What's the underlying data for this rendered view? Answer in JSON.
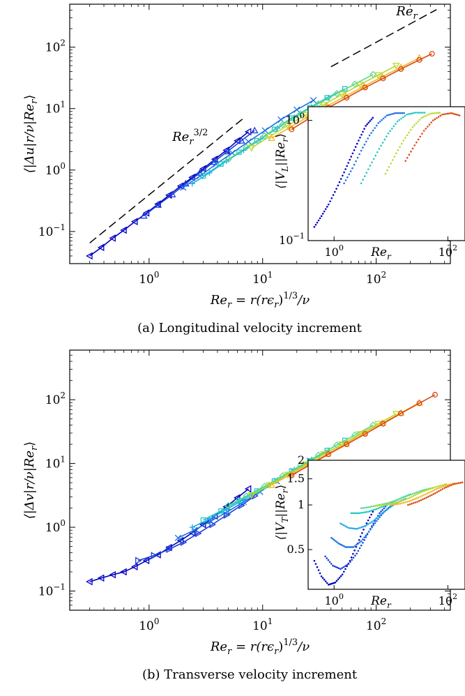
{
  "chart_data": [
    {
      "id": "a",
      "type": "scatter",
      "caption": "(a) Longitudinal velocity increment",
      "xscale": "log",
      "yscale": "log",
      "xlim": [
        0.2,
        450
      ],
      "ylim": [
        0.03,
        500
      ],
      "xticks": [
        {
          "v": 1,
          "mant": "10",
          "exp": "0"
        },
        {
          "v": 10,
          "mant": "10",
          "exp": "1"
        },
        {
          "v": 100,
          "mant": "10",
          "exp": "2"
        }
      ],
      "yticks": [
        {
          "v": 0.1,
          "mant": "10",
          "exp": "−1"
        },
        {
          "v": 1,
          "mant": "10",
          "exp": "0"
        },
        {
          "v": 10,
          "mant": "10",
          "exp": "1"
        },
        {
          "v": 100,
          "mant": "10",
          "exp": "2"
        }
      ],
      "xlabel": {
        "a": "Re",
        "b": "r",
        "c": " = r(rϵ",
        "d": "r",
        "e": ")",
        "f": "1/3",
        "g": "/ν"
      },
      "ylabel": {
        "a": "⟨|Δu|r/ν|Re",
        "b": "r",
        "c": "⟩"
      },
      "annotations": [
        {
          "name": "re-three-halves",
          "base": "Re",
          "sub": "r",
          "sup": "3/2",
          "x": 1.6,
          "y": 3.0
        },
        {
          "name": "re-linear",
          "base": "Re",
          "sub": "r",
          "sup": "",
          "x": 150,
          "y": 330
        }
      ],
      "reference_lines": [
        {
          "name": "slope-3/2",
          "x": [
            0.3,
            7
          ],
          "y": [
            0.065,
            7.3
          ]
        },
        {
          "name": "slope-1",
          "x": [
            40,
            340
          ],
          "y": [
            48,
            408
          ]
        }
      ],
      "series": [
        {
          "color": "#0000c0",
          "marker": "tri-left",
          "x": [
            0.3,
            0.38,
            0.48,
            0.6,
            0.75,
            0.95,
            1.2,
            1.5,
            1.9,
            2.4,
            3.0,
            3.8,
            4.8,
            6.0,
            7.5
          ],
          "y": [
            0.04,
            0.055,
            0.078,
            0.105,
            0.145,
            0.2,
            0.28,
            0.39,
            0.55,
            0.76,
            1.05,
            1.5,
            2.1,
            3.0,
            4.2
          ]
        },
        {
          "color": "#1a3cd8",
          "marker": "tri-up",
          "x": [
            0.9,
            1.2,
            1.6,
            2.1,
            2.8,
            3.7,
            4.9,
            6.5,
            8.5
          ],
          "y": [
            0.18,
            0.27,
            0.4,
            0.6,
            0.9,
            1.35,
            2.0,
            3.0,
            4.4
          ]
        },
        {
          "color": "#1b70e0",
          "marker": "cross",
          "x": [
            2.0,
            2.8,
            3.9,
            5.4,
            7.5,
            10.5,
            14.5,
            20,
            28
          ],
          "y": [
            0.52,
            0.8,
            1.25,
            1.9,
            2.9,
            4.4,
            6.6,
            9.6,
            13.6
          ]
        },
        {
          "color": "#20a8e8",
          "marker": "plus",
          "x": [
            2.4,
            3.4,
            4.8,
            6.8,
            9.6,
            13.5,
            19,
            27,
            38
          ],
          "y": [
            0.6,
            0.9,
            1.4,
            2.1,
            3.2,
            4.8,
            7.2,
            10.5,
            15
          ]
        },
        {
          "color": "#20c8c0",
          "marker": "square",
          "x": [
            3.0,
            4.3,
            6.2,
            8.9,
            12.7,
            18,
            26,
            37,
            53
          ],
          "y": [
            0.8,
            1.25,
            1.95,
            3.0,
            4.6,
            7.0,
            10.4,
            15,
            21
          ]
        },
        {
          "color": "#5ed890",
          "marker": "diamond",
          "x": [
            5.0,
            7.2,
            10.4,
            15,
            21.6,
            31,
            45,
            65,
            94
          ],
          "y": [
            1.5,
            2.35,
            3.6,
            5.5,
            8.2,
            12,
            17.5,
            25,
            36
          ]
        },
        {
          "color": "#b8d830",
          "marker": "tri-down",
          "x": [
            8,
            11.5,
            16.6,
            24,
            34.5,
            50,
            72,
            104,
            150
          ],
          "y": [
            2.3,
            3.5,
            5.3,
            7.9,
            11.5,
            17,
            24.5,
            35,
            50
          ]
        },
        {
          "color": "#f0b828",
          "marker": "tri-up",
          "x": [
            12,
            17.5,
            25.5,
            37,
            54,
            78,
            113,
            165,
            240
          ],
          "y": [
            3.3,
            5.0,
            7.5,
            11,
            16,
            23,
            33,
            47,
            67
          ]
        },
        {
          "color": "#d94a14",
          "marker": "circle",
          "x": [
            18,
            26,
            38,
            55,
            80,
            115,
            165,
            240,
            310
          ],
          "y": [
            4.6,
            7.0,
            10.4,
            15,
            22,
            31,
            44,
            62,
            78
          ]
        }
      ],
      "inset": {
        "xscale": "log",
        "yscale": "log",
        "xlim": [
          0.35,
          200
        ],
        "ylim": [
          0.1,
          1.3
        ],
        "xticks": [
          {
            "v": 1,
            "mant": "10",
            "exp": "0"
          },
          {
            "v": 100,
            "mant": "10",
            "exp": "2"
          }
        ],
        "yticks": [
          {
            "v": 0.1,
            "mant": "10",
            "exp": "−1"
          },
          {
            "v": 1,
            "mant": "10",
            "exp": "0"
          }
        ],
        "xlabel": {
          "a": "Re",
          "b": "r"
        },
        "ylabel": {
          "a": "⟨|V",
          "b": "L",
          "c": "||Re",
          "d": "r",
          "e": "⟩"
        },
        "series": [
          {
            "color": "#0000c0",
            "x": [
              0.45,
              0.6,
              0.8,
              1.1,
              1.5,
              2.0,
              2.7,
              3.6,
              4.8
            ],
            "y": [
              0.13,
              0.16,
              0.2,
              0.27,
              0.37,
              0.5,
              0.68,
              0.9,
              1.05
            ]
          },
          {
            "color": "#1b70e0",
            "x": [
              1.5,
              2.1,
              3.0,
              4.2,
              6.0,
              8.5,
              12,
              17
            ],
            "y": [
              0.3,
              0.4,
              0.56,
              0.75,
              0.95,
              1.1,
              1.15,
              1.15
            ]
          },
          {
            "color": "#20c8c0",
            "x": [
              3,
              4.3,
              6.2,
              9,
              13,
              19,
              27,
              39
            ],
            "y": [
              0.3,
              0.42,
              0.58,
              0.78,
              0.98,
              1.12,
              1.16,
              1.16
            ]
          },
          {
            "color": "#b8d830",
            "x": [
              8,
              11.5,
              16.6,
              24,
              34.5,
              50,
              72
            ],
            "y": [
              0.36,
              0.5,
              0.68,
              0.88,
              1.05,
              1.14,
              1.16
            ]
          },
          {
            "color": "#d94a14",
            "x": [
              18,
              26,
              38,
              55,
              80,
              115,
              160
            ],
            "y": [
              0.46,
              0.62,
              0.82,
              1.0,
              1.12,
              1.15,
              1.1
            ]
          }
        ]
      }
    },
    {
      "id": "b",
      "type": "scatter",
      "caption": "(b) Transverse velocity increment",
      "xscale": "log",
      "yscale": "log",
      "xlim": [
        0.2,
        450
      ],
      "ylim": [
        0.05,
        600
      ],
      "xticks": [
        {
          "v": 1,
          "mant": "10",
          "exp": "0"
        },
        {
          "v": 10,
          "mant": "10",
          "exp": "1"
        },
        {
          "v": 100,
          "mant": "10",
          "exp": "2"
        }
      ],
      "yticks": [
        {
          "v": 0.1,
          "mant": "10",
          "exp": "−1"
        },
        {
          "v": 1,
          "mant": "10",
          "exp": "0"
        },
        {
          "v": 10,
          "mant": "10",
          "exp": "1"
        },
        {
          "v": 100,
          "mant": "10",
          "exp": "2"
        }
      ],
      "xlabel": {
        "a": "Re",
        "b": "r",
        "c": " = r(rϵ",
        "d": "r",
        "e": ")",
        "f": "1/3",
        "g": "/ν"
      },
      "ylabel": {
        "a": "⟨|Δv|r/ν|Re",
        "b": "r",
        "c": "⟩"
      },
      "annotations": [],
      "reference_lines": [],
      "series": [
        {
          "color": "#0000c0",
          "marker": "tri-left",
          "x": [
            0.3,
            0.38,
            0.48,
            0.6,
            0.75,
            0.95,
            1.2,
            1.5,
            1.9,
            2.4,
            3.0,
            3.8,
            4.8,
            6.0,
            7.5
          ],
          "y": [
            0.14,
            0.16,
            0.18,
            0.2,
            0.24,
            0.3,
            0.37,
            0.48,
            0.62,
            0.82,
            1.1,
            1.5,
            2.1,
            2.9,
            4.0
          ]
        },
        {
          "color": "#1a3cd8",
          "marker": "tri-right",
          "x": [
            0.8,
            1.1,
            1.5,
            2.0,
            2.7,
            3.6,
            4.8,
            6.5,
            8.5
          ],
          "y": [
            0.3,
            0.36,
            0.45,
            0.58,
            0.8,
            1.1,
            1.55,
            2.2,
            3.1
          ]
        },
        {
          "color": "#1b70e0",
          "marker": "cross",
          "x": [
            1.8,
            2.5,
            3.5,
            4.9,
            6.8,
            9.5,
            13.3,
            18.6,
            26
          ],
          "y": [
            0.68,
            0.9,
            1.25,
            1.75,
            2.5,
            3.6,
            5.3,
            7.6,
            11
          ]
        },
        {
          "color": "#20a8e8",
          "marker": "plus",
          "x": [
            2.4,
            3.4,
            4.8,
            6.8,
            9.6,
            13.5,
            19,
            27,
            38
          ],
          "y": [
            1.0,
            1.35,
            1.9,
            2.7,
            3.8,
            5.5,
            8.0,
            11.5,
            16
          ]
        },
        {
          "color": "#20c8c0",
          "marker": "square",
          "x": [
            3.0,
            4.3,
            6.2,
            8.9,
            12.7,
            18,
            26,
            37,
            53
          ],
          "y": [
            1.3,
            1.8,
            2.6,
            3.7,
            5.3,
            7.6,
            11,
            16,
            23
          ]
        },
        {
          "color": "#5ed890",
          "marker": "diamond",
          "x": [
            5.0,
            7.2,
            10.4,
            15,
            21.6,
            31,
            45,
            65,
            94
          ],
          "y": [
            2.2,
            3.1,
            4.4,
            6.4,
            9.3,
            13.5,
            19.5,
            28,
            40
          ]
        },
        {
          "color": "#b8d830",
          "marker": "tri-down",
          "x": [
            8,
            11.5,
            16.6,
            24,
            34.5,
            50,
            72,
            104,
            150
          ],
          "y": [
            3.2,
            4.6,
            6.7,
            9.7,
            14,
            20,
            29,
            42,
            60
          ]
        },
        {
          "color": "#f0b828",
          "marker": "tri-up",
          "x": [
            12,
            17.5,
            25.5,
            37,
            54,
            78,
            113,
            165,
            240
          ],
          "y": [
            4.6,
            6.7,
            9.8,
            14,
            20.5,
            30,
            43,
            62,
            90
          ]
        },
        {
          "color": "#d94a14",
          "marker": "circle",
          "x": [
            18,
            26,
            38,
            55,
            80,
            115,
            165,
            240,
            330
          ],
          "y": [
            6.5,
            9.5,
            14,
            20,
            29,
            42,
            61,
            88,
            120
          ]
        }
      ],
      "inset": {
        "xscale": "log",
        "yscale": "log",
        "xlim": [
          0.35,
          200
        ],
        "ylim": [
          0.27,
          2.0
        ],
        "xticks": [
          {
            "v": 1,
            "mant": "10",
            "exp": "0"
          },
          {
            "v": 100,
            "mant": "10",
            "exp": "2"
          }
        ],
        "yticks": [
          {
            "v": 0.5,
            "mant": "0.5",
            "exp": ""
          },
          {
            "v": 1,
            "mant": "1",
            "exp": ""
          },
          {
            "v": 1.5,
            "mant": "1.5",
            "exp": ""
          },
          {
            "v": 2,
            "mant": "2",
            "exp": ""
          }
        ],
        "xlabel": {
          "a": "Re",
          "b": "r"
        },
        "ylabel": {
          "a": "⟨|V",
          "b": "T",
          "c": "||Re",
          "d": "r",
          "e": "⟩"
        },
        "series": [
          {
            "color": "#0000c0",
            "x": [
              0.45,
              0.6,
              0.8,
              1.05,
              1.4,
              1.9,
              2.6,
              3.5,
              4.8
            ],
            "y": [
              0.42,
              0.33,
              0.29,
              0.3,
              0.34,
              0.42,
              0.55,
              0.72,
              0.9
            ]
          },
          {
            "color": "#1a3cd8",
            "x": [
              0.7,
              0.95,
              1.3,
              1.8,
              2.5,
              3.4,
              4.6,
              6.3,
              8.5
            ],
            "y": [
              0.45,
              0.39,
              0.37,
              0.4,
              0.47,
              0.58,
              0.72,
              0.88,
              1.0
            ]
          },
          {
            "color": "#1b70e0",
            "x": [
              0.9,
              1.2,
              1.6,
              2.2,
              3.0,
              4.1,
              5.6,
              7.6,
              10.3
            ],
            "y": [
              0.6,
              0.55,
              0.52,
              0.52,
              0.57,
              0.66,
              0.78,
              0.9,
              1.0
            ]
          },
          {
            "color": "#20a8e8",
            "x": [
              1.3,
              1.8,
              2.5,
              3.5,
              4.9,
              6.8,
              9.5,
              13,
              18
            ],
            "y": [
              0.75,
              0.7,
              0.69,
              0.72,
              0.78,
              0.87,
              0.96,
              1.04,
              1.1
            ]
          },
          {
            "color": "#20c8c0",
            "x": [
              2,
              2.8,
              4,
              5.6,
              7.9,
              11,
              15.6,
              22
            ],
            "y": [
              0.88,
              0.88,
              0.9,
              0.94,
              0.99,
              1.05,
              1.12,
              1.18
            ]
          },
          {
            "color": "#5ed890",
            "x": [
              3,
              4.3,
              6.2,
              8.9,
              12.7,
              18,
              26,
              37,
              53
            ],
            "y": [
              0.95,
              0.97,
              1.0,
              1.03,
              1.08,
              1.14,
              1.2,
              1.26,
              1.3
            ]
          },
          {
            "color": "#b8d830",
            "x": [
              5,
              7.2,
              10.4,
              15,
              21.6,
              31,
              45,
              65,
              94
            ],
            "y": [
              0.98,
              1.0,
              1.02,
              1.06,
              1.12,
              1.2,
              1.27,
              1.33,
              1.38
            ]
          },
          {
            "color": "#f0b828",
            "x": [
              10,
              14.5,
              21,
              30,
              44,
              63,
              91,
              130
            ],
            "y": [
              1.0,
              1.02,
              1.06,
              1.12,
              1.2,
              1.28,
              1.35,
              1.4
            ]
          },
          {
            "color": "#d94a14",
            "x": [
              20,
              29,
              42,
              60,
              87,
              125,
              180
            ],
            "y": [
              1.0,
              1.05,
              1.12,
              1.2,
              1.3,
              1.38,
              1.42
            ]
          }
        ]
      }
    }
  ]
}
